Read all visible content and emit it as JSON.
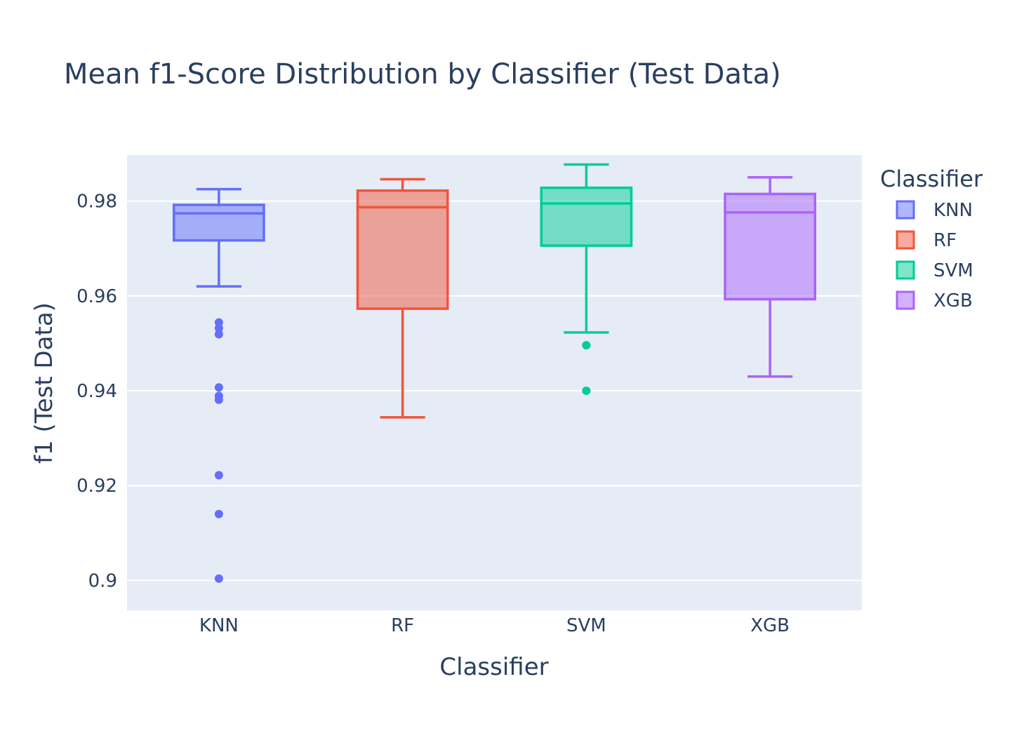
{
  "chart_data": {
    "type": "box",
    "title": "Mean f1-Score Distribution by Classifier (Test Data)",
    "xlabel": "Classifier",
    "ylabel": "f1 (Test Data)",
    "ylim": [
      0.8937,
      0.9897
    ],
    "y_ticks": [
      0.9,
      0.92,
      0.94,
      0.96,
      0.98
    ],
    "y_tick_labels": [
      "0.9",
      "0.92",
      "0.94",
      "0.96",
      "0.98"
    ],
    "grid": true,
    "legend_title": "Classifier",
    "legend_position": "right",
    "categories": [
      "KNN",
      "RF",
      "SVM",
      "XGB"
    ],
    "series": [
      {
        "name": "KNN",
        "color": "#636efa",
        "lowerfence": 0.962,
        "q1": 0.9717,
        "median": 0.9774,
        "q3": 0.9792,
        "upperfence": 0.9825,
        "outliers": [
          0.9544,
          0.9532,
          0.9519,
          0.9407,
          0.9389,
          0.9381,
          0.9222,
          0.914,
          0.9004
        ]
      },
      {
        "name": "RF",
        "color": "#ef553b",
        "lowerfence": 0.9344,
        "q1": 0.9573,
        "median": 0.9787,
        "q3": 0.9822,
        "upperfence": 0.9846,
        "outliers": []
      },
      {
        "name": "SVM",
        "color": "#00cc96",
        "lowerfence": 0.9523,
        "q1": 0.9706,
        "median": 0.9795,
        "q3": 0.9828,
        "upperfence": 0.9877,
        "outliers": [
          0.9496,
          0.94
        ]
      },
      {
        "name": "XGB",
        "color": "#ab63fa",
        "lowerfence": 0.943,
        "q1": 0.9593,
        "median": 0.9776,
        "q3": 0.9815,
        "upperfence": 0.985,
        "outliers": []
      }
    ]
  }
}
